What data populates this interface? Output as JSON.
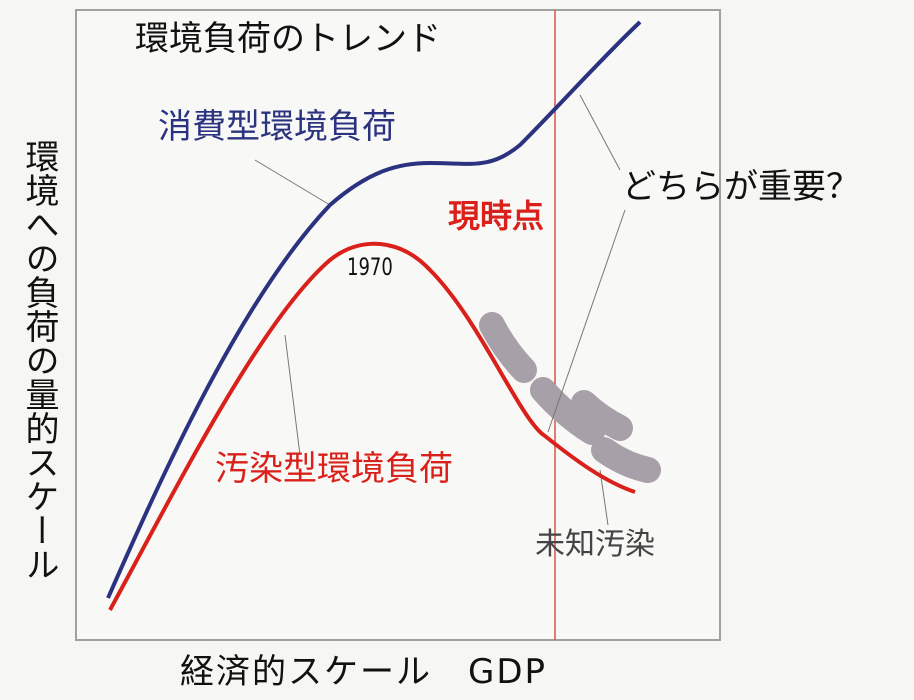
{
  "title": "環境負荷のトレンド",
  "labels": {
    "consumption": "消費型環境負荷",
    "question": "どちらが重要？",
    "present": "現時点",
    "year": "1970",
    "pollution": "汚染型環境負荷",
    "unknown": "未知汚染"
  },
  "axes": {
    "y": "環境への負荷の量的スケール",
    "x": "経済的スケール　GDP"
  }
}
